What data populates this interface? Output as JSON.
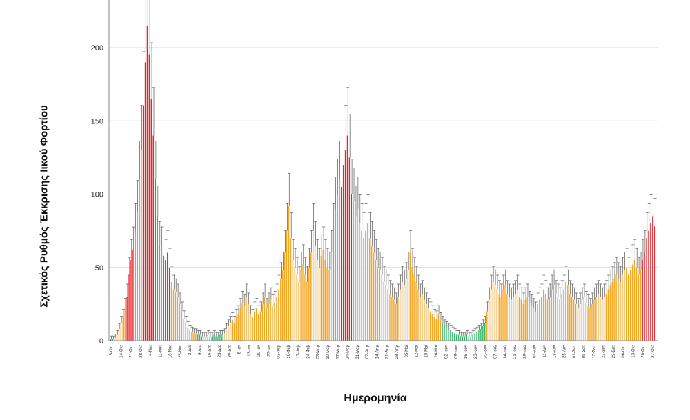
{
  "chart_data": {
    "type": "bar",
    "title": "",
    "ylabel": "Σχετικός Ρυθμός Έκκρισης Ιικού Φορτίου",
    "xlabel": "Ημερομηνία",
    "ylim": [
      0,
      235
    ],
    "yticks": [
      0,
      50,
      100,
      150,
      200
    ],
    "grid": true,
    "legend": "none",
    "error_bars": true,
    "colors": {
      "red": "#e8232a",
      "orange": "#f5a623",
      "green": "#34b86a",
      "white": "#ffffff",
      "error": "#555555",
      "grid": "#d9d9d9"
    },
    "date_labels": [
      "5-Οκτ",
      "14-Οκτ",
      "21-Οκτ",
      "28-Οκτ",
      "4-Νοε",
      "11-Νοε",
      "18-Νοε",
      "25-Νοε",
      "2-Δεκ",
      "9-Δεκ",
      "16-Δεκ",
      "23-Δεκ",
      "30-Δεκ",
      "6-Ιαν",
      "13-Ιαν",
      "20-Ιαν",
      "27-Ιαν",
      "03-Φεβ",
      "10-Φεβ",
      "17-Φεβ",
      "24-Φεβ",
      "03-Μαρ",
      "10-Μαρ",
      "17-Μαρ",
      "24-Μαρ",
      "31-Μαρ",
      "07-Απρ",
      "14-Απρ",
      "21-Απρ",
      "28-Απρ",
      "05-Μαϊ",
      "12-Μαϊ",
      "19-Μαϊ",
      "26-Μαϊ",
      "02-Ιουν",
      "09-Ιουν",
      "16-Ιουν",
      "23-Ιουν",
      "30-Ιουν",
      "07-Ιουλ",
      "14-Ιουλ",
      "21-Ιουλ",
      "28-Ιουλ",
      "04-Αυγ",
      "11-Αυγ",
      "18-Αυγ",
      "25-Αυγ",
      "01-Σεπ",
      "08-Σεπ",
      "15-Σεπ",
      "22-Σεπ",
      "29-Σεπ",
      "06-Οκτ",
      "13-Οκτ",
      "20-Οκτ",
      "27-Οκτ"
    ],
    "points": [
      {
        "v": 1,
        "c": "g"
      },
      {
        "v": 1,
        "c": "g"
      },
      {
        "v": 2,
        "c": "g"
      },
      {
        "v": 4,
        "c": "o"
      },
      {
        "v": 8,
        "c": "o"
      },
      {
        "v": 12,
        "c": "o"
      },
      {
        "v": 16,
        "c": "o"
      },
      {
        "v": 22,
        "c": "o"
      },
      {
        "v": 30,
        "c": "r"
      },
      {
        "v": 45,
        "c": "r"
      },
      {
        "v": 55,
        "c": "r"
      },
      {
        "v": 62,
        "c": "r"
      },
      {
        "v": 75,
        "c": "r"
      },
      {
        "v": 88,
        "c": "r"
      },
      {
        "v": 110,
        "c": "r"
      },
      {
        "v": 130,
        "c": "r"
      },
      {
        "v": 160,
        "c": "r"
      },
      {
        "v": 190,
        "c": "r"
      },
      {
        "v": 215,
        "c": "r"
      },
      {
        "v": 195,
        "c": "r"
      },
      {
        "v": 165,
        "c": "r"
      },
      {
        "v": 140,
        "c": "r"
      },
      {
        "v": 110,
        "c": "r"
      },
      {
        "v": 85,
        "c": "r"
      },
      {
        "v": 65,
        "c": "r"
      },
      {
        "v": 62,
        "c": "r"
      },
      {
        "v": 58,
        "c": "r"
      },
      {
        "v": 55,
        "c": "r"
      },
      {
        "v": 60,
        "c": "r"
      },
      {
        "v": 50,
        "c": "r"
      },
      {
        "v": 40,
        "c": "o"
      },
      {
        "v": 35,
        "c": "o"
      },
      {
        "v": 33,
        "c": "o"
      },
      {
        "v": 30,
        "c": "o"
      },
      {
        "v": 25,
        "c": "o"
      },
      {
        "v": 20,
        "c": "o"
      },
      {
        "v": 15,
        "c": "o"
      },
      {
        "v": 12,
        "c": "o"
      },
      {
        "v": 9,
        "c": "o"
      },
      {
        "v": 7,
        "c": "o"
      },
      {
        "v": 6,
        "c": "o"
      },
      {
        "v": 5,
        "c": "o"
      },
      {
        "v": 5,
        "c": "o"
      },
      {
        "v": 4,
        "c": "g"
      },
      {
        "v": 4,
        "c": "g"
      },
      {
        "v": 3,
        "c": "g"
      },
      {
        "v": 3,
        "c": "g"
      },
      {
        "v": 3,
        "c": "g"
      },
      {
        "v": 4,
        "c": "g"
      },
      {
        "v": 3,
        "c": "g"
      },
      {
        "v": 3,
        "c": "g"
      },
      {
        "v": 4,
        "c": "g"
      },
      {
        "v": 3,
        "c": "g"
      },
      {
        "v": 3,
        "c": "g"
      },
      {
        "v": 4,
        "c": "g"
      },
      {
        "v": 4,
        "c": "g"
      },
      {
        "v": 5,
        "c": "o"
      },
      {
        "v": 8,
        "c": "o"
      },
      {
        "v": 10,
        "c": "o"
      },
      {
        "v": 12,
        "c": "o"
      },
      {
        "v": 14,
        "c": "o"
      },
      {
        "v": 12,
        "c": "o"
      },
      {
        "v": 16,
        "c": "o"
      },
      {
        "v": 18,
        "c": "o"
      },
      {
        "v": 22,
        "c": "o"
      },
      {
        "v": 26,
        "c": "o"
      },
      {
        "v": 24,
        "c": "o"
      },
      {
        "v": 30,
        "c": "o"
      },
      {
        "v": 25,
        "c": "o"
      },
      {
        "v": 18,
        "c": "o"
      },
      {
        "v": 16,
        "c": "o"
      },
      {
        "v": 20,
        "c": "o"
      },
      {
        "v": 22,
        "c": "o"
      },
      {
        "v": 18,
        "c": "o"
      },
      {
        "v": 20,
        "c": "o"
      },
      {
        "v": 25,
        "c": "o"
      },
      {
        "v": 30,
        "c": "o"
      },
      {
        "v": 22,
        "c": "o"
      },
      {
        "v": 25,
        "c": "o"
      },
      {
        "v": 28,
        "c": "o"
      },
      {
        "v": 24,
        "c": "o"
      },
      {
        "v": 26,
        "c": "o"
      },
      {
        "v": 30,
        "c": "o"
      },
      {
        "v": 35,
        "c": "o"
      },
      {
        "v": 42,
        "c": "o"
      },
      {
        "v": 48,
        "c": "o"
      },
      {
        "v": 60,
        "c": "o"
      },
      {
        "v": 75,
        "c": "o"
      },
      {
        "v": 92,
        "c": "o"
      },
      {
        "v": 70,
        "c": "o"
      },
      {
        "v": 55,
        "c": "o"
      },
      {
        "v": 50,
        "c": "o"
      },
      {
        "v": 45,
        "c": "o"
      },
      {
        "v": 40,
        "c": "o"
      },
      {
        "v": 48,
        "c": "o"
      },
      {
        "v": 52,
        "c": "o"
      },
      {
        "v": 45,
        "c": "o"
      },
      {
        "v": 40,
        "c": "o"
      },
      {
        "v": 50,
        "c": "o"
      },
      {
        "v": 60,
        "c": "o"
      },
      {
        "v": 75,
        "c": "o"
      },
      {
        "v": 65,
        "c": "o"
      },
      {
        "v": 55,
        "c": "o"
      },
      {
        "v": 50,
        "c": "o"
      },
      {
        "v": 58,
        "c": "o"
      },
      {
        "v": 62,
        "c": "o"
      },
      {
        "v": 55,
        "c": "o"
      },
      {
        "v": 50,
        "c": "o"
      },
      {
        "v": 48,
        "c": "o"
      },
      {
        "v": 60,
        "c": "o"
      },
      {
        "v": 75,
        "c": "r"
      },
      {
        "v": 90,
        "c": "r"
      },
      {
        "v": 100,
        "c": "r"
      },
      {
        "v": 110,
        "c": "r"
      },
      {
        "v": 105,
        "c": "r"
      },
      {
        "v": 120,
        "c": "r"
      },
      {
        "v": 130,
        "c": "r"
      },
      {
        "v": 140,
        "c": "r"
      },
      {
        "v": 125,
        "c": "r"
      },
      {
        "v": 100,
        "c": "r"
      },
      {
        "v": 95,
        "c": "o"
      },
      {
        "v": 85,
        "c": "o"
      },
      {
        "v": 90,
        "c": "o"
      },
      {
        "v": 80,
        "c": "o"
      },
      {
        "v": 75,
        "c": "o"
      },
      {
        "v": 70,
        "c": "o"
      },
      {
        "v": 75,
        "c": "o"
      },
      {
        "v": 80,
        "c": "o"
      },
      {
        "v": 70,
        "c": "o"
      },
      {
        "v": 65,
        "c": "o"
      },
      {
        "v": 60,
        "c": "o"
      },
      {
        "v": 55,
        "c": "o"
      },
      {
        "v": 50,
        "c": "o"
      },
      {
        "v": 48,
        "c": "o"
      },
      {
        "v": 45,
        "c": "o"
      },
      {
        "v": 40,
        "c": "o"
      },
      {
        "v": 38,
        "c": "o"
      },
      {
        "v": 35,
        "c": "o"
      },
      {
        "v": 32,
        "c": "o"
      },
      {
        "v": 30,
        "c": "o"
      },
      {
        "v": 28,
        "c": "o"
      },
      {
        "v": 25,
        "c": "o"
      },
      {
        "v": 30,
        "c": "o"
      },
      {
        "v": 35,
        "c": "o"
      },
      {
        "v": 40,
        "c": "o"
      },
      {
        "v": 38,
        "c": "o"
      },
      {
        "v": 42,
        "c": "o"
      },
      {
        "v": 48,
        "c": "o"
      },
      {
        "v": 60,
        "c": "o"
      },
      {
        "v": 50,
        "c": "o"
      },
      {
        "v": 45,
        "c": "o"
      },
      {
        "v": 40,
        "c": "o"
      },
      {
        "v": 35,
        "c": "o"
      },
      {
        "v": 30,
        "c": "o"
      },
      {
        "v": 32,
        "c": "o"
      },
      {
        "v": 28,
        "c": "o"
      },
      {
        "v": 25,
        "c": "o"
      },
      {
        "v": 22,
        "c": "o"
      },
      {
        "v": 20,
        "c": "o"
      },
      {
        "v": 18,
        "c": "o"
      },
      {
        "v": 16,
        "c": "o"
      },
      {
        "v": 15,
        "c": "o"
      },
      {
        "v": 18,
        "c": "o"
      },
      {
        "v": 14,
        "c": "o"
      },
      {
        "v": 12,
        "c": "g"
      },
      {
        "v": 10,
        "c": "g"
      },
      {
        "v": 9,
        "c": "g"
      },
      {
        "v": 8,
        "c": "g"
      },
      {
        "v": 7,
        "c": "g"
      },
      {
        "v": 6,
        "c": "g"
      },
      {
        "v": 5,
        "c": "g"
      },
      {
        "v": 4,
        "c": "g"
      },
      {
        "v": 4,
        "c": "g"
      },
      {
        "v": 3,
        "c": "g"
      },
      {
        "v": 3,
        "c": "g"
      },
      {
        "v": 3,
        "c": "g"
      },
      {
        "v": 4,
        "c": "g"
      },
      {
        "v": 3,
        "c": "g"
      },
      {
        "v": 3,
        "c": "g"
      },
      {
        "v": 4,
        "c": "g"
      },
      {
        "v": 5,
        "c": "g"
      },
      {
        "v": 6,
        "c": "g"
      },
      {
        "v": 7,
        "c": "g"
      },
      {
        "v": 8,
        "c": "g"
      },
      {
        "v": 10,
        "c": "g"
      },
      {
        "v": 12,
        "c": "g"
      },
      {
        "v": 20,
        "c": "o"
      },
      {
        "v": 28,
        "c": "o"
      },
      {
        "v": 35,
        "c": "o"
      },
      {
        "v": 40,
        "c": "o"
      },
      {
        "v": 38,
        "c": "o"
      },
      {
        "v": 35,
        "c": "o"
      },
      {
        "v": 32,
        "c": "o"
      },
      {
        "v": 30,
        "c": "o"
      },
      {
        "v": 35,
        "c": "o"
      },
      {
        "v": 38,
        "c": "o"
      },
      {
        "v": 32,
        "c": "o"
      },
      {
        "v": 30,
        "c": "o"
      },
      {
        "v": 28,
        "c": "o"
      },
      {
        "v": 30,
        "c": "o"
      },
      {
        "v": 32,
        "c": "o"
      },
      {
        "v": 35,
        "c": "o"
      },
      {
        "v": 30,
        "c": "o"
      },
      {
        "v": 28,
        "c": "o"
      },
      {
        "v": 25,
        "c": "o"
      },
      {
        "v": 28,
        "c": "o"
      },
      {
        "v": 30,
        "c": "o"
      },
      {
        "v": 26,
        "c": "o"
      },
      {
        "v": 24,
        "c": "o"
      },
      {
        "v": 22,
        "c": "o"
      },
      {
        "v": 20,
        "c": "o"
      },
      {
        "v": 25,
        "c": "o"
      },
      {
        "v": 28,
        "c": "o"
      },
      {
        "v": 30,
        "c": "o"
      },
      {
        "v": 35,
        "c": "o"
      },
      {
        "v": 32,
        "c": "o"
      },
      {
        "v": 28,
        "c": "o"
      },
      {
        "v": 30,
        "c": "o"
      },
      {
        "v": 35,
        "c": "o"
      },
      {
        "v": 38,
        "c": "o"
      },
      {
        "v": 32,
        "c": "o"
      },
      {
        "v": 30,
        "c": "o"
      },
      {
        "v": 28,
        "c": "o"
      },
      {
        "v": 32,
        "c": "o"
      },
      {
        "v": 35,
        "c": "o"
      },
      {
        "v": 40,
        "c": "o"
      },
      {
        "v": 38,
        "c": "o"
      },
      {
        "v": 32,
        "c": "o"
      },
      {
        "v": 30,
        "c": "o"
      },
      {
        "v": 28,
        "c": "o"
      },
      {
        "v": 25,
        "c": "o"
      },
      {
        "v": 22,
        "c": "o"
      },
      {
        "v": 25,
        "c": "o"
      },
      {
        "v": 28,
        "c": "o"
      },
      {
        "v": 30,
        "c": "o"
      },
      {
        "v": 26,
        "c": "o"
      },
      {
        "v": 24,
        "c": "o"
      },
      {
        "v": 22,
        "c": "o"
      },
      {
        "v": 25,
        "c": "o"
      },
      {
        "v": 28,
        "c": "o"
      },
      {
        "v": 30,
        "c": "o"
      },
      {
        "v": 32,
        "c": "o"
      },
      {
        "v": 30,
        "c": "o"
      },
      {
        "v": 28,
        "c": "o"
      },
      {
        "v": 30,
        "c": "o"
      },
      {
        "v": 32,
        "c": "o"
      },
      {
        "v": 35,
        "c": "o"
      },
      {
        "v": 38,
        "c": "o"
      },
      {
        "v": 40,
        "c": "o"
      },
      {
        "v": 42,
        "c": "o"
      },
      {
        "v": 45,
        "c": "o"
      },
      {
        "v": 42,
        "c": "o"
      },
      {
        "v": 40,
        "c": "o"
      },
      {
        "v": 45,
        "c": "o"
      },
      {
        "v": 48,
        "c": "o"
      },
      {
        "v": 50,
        "c": "o"
      },
      {
        "v": 45,
        "c": "o"
      },
      {
        "v": 48,
        "c": "o"
      },
      {
        "v": 52,
        "c": "o"
      },
      {
        "v": 55,
        "c": "o"
      },
      {
        "v": 50,
        "c": "o"
      },
      {
        "v": 45,
        "c": "o"
      },
      {
        "v": 48,
        "c": "o"
      },
      {
        "v": 55,
        "c": "r"
      },
      {
        "v": 60,
        "c": "r"
      },
      {
        "v": 70,
        "c": "r"
      },
      {
        "v": 75,
        "c": "r"
      },
      {
        "v": 80,
        "c": "r"
      },
      {
        "v": 85,
        "c": "r"
      },
      {
        "v": 78,
        "c": "r"
      }
    ]
  }
}
